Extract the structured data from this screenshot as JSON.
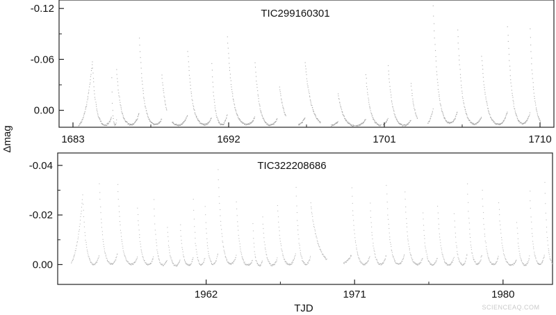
{
  "chart_data": [
    {
      "type": "scatter",
      "title": "TIC299160301",
      "xlim": [
        1683,
        1710
      ],
      "ylim": [
        0.02,
        -0.13
      ],
      "y_inverted": true,
      "x_ticks": [
        1683,
        1692,
        1701,
        1710
      ],
      "x_tick_labels": [
        "1683",
        "1692",
        "1701",
        "1710"
      ],
      "y_ticks": [
        -0.12,
        -0.06,
        0.0
      ],
      "y_tick_labels": [
        "-0.12",
        "-0.06",
        "0.00"
      ],
      "grid": false,
      "marker_color": "#9a9a9a",
      "series": [
        {
          "peaks": [
            [
              1684.1,
              -0.058
            ],
            [
              1685.2,
              -0.062
            ],
            [
              1685.5,
              -0.05
            ],
            [
              1686.8,
              -0.094
            ],
            [
              1688.1,
              -0.044
            ],
            [
              1689.6,
              -0.076
            ],
            [
              1691.0,
              -0.058
            ],
            [
              1691.9,
              -0.09
            ],
            [
              1693.5,
              -0.06
            ],
            [
              1694.8,
              -0.052
            ],
            [
              1696.4,
              -0.058
            ],
            [
              1698.3,
              -0.022
            ],
            [
              1699.9,
              -0.046
            ],
            [
              1701.2,
              -0.055
            ],
            [
              1702.5,
              -0.036
            ],
            [
              1703.8,
              -0.128
            ],
            [
              1705.2,
              -0.104
            ],
            [
              1706.6,
              -0.066
            ],
            [
              1708.1,
              -0.104
            ],
            [
              1709.4,
              -0.098
            ]
          ],
          "troughs_mag": 0.02,
          "segments": [
            [
              1683.3,
              1688.4
            ],
            [
              1688.7,
              1694.8
            ],
            [
              1694.9,
              1695.3
            ],
            [
              1696.0,
              1697.3
            ],
            [
              1697.9,
              1700.8
            ],
            [
              1700.9,
              1702.9
            ],
            [
              1703.5,
              1710.0
            ]
          ]
        }
      ]
    },
    {
      "type": "scatter",
      "title": "TIC322208686",
      "xlabel": "TJD",
      "xlim": [
        1953,
        1983
      ],
      "ylim": [
        0.008,
        -0.045
      ],
      "y_inverted": true,
      "x_ticks": [
        1962,
        1971,
        1980
      ],
      "x_tick_labels": [
        "1962",
        "1971",
        "1980"
      ],
      "y_ticks": [
        -0.04,
        -0.02,
        0.0
      ],
      "y_tick_labels": [
        "-0.04",
        "-0.02",
        "0.00"
      ],
      "grid": false,
      "marker_color": "#b0b0b0",
      "series": [
        {
          "peaks": [
            [
              1954.5,
              -0.028
            ],
            [
              1955.5,
              -0.034
            ],
            [
              1956.6,
              -0.036
            ],
            [
              1957.8,
              -0.026
            ],
            [
              1958.8,
              -0.028
            ],
            [
              1959.6,
              -0.018
            ],
            [
              1960.4,
              -0.018
            ],
            [
              1961.2,
              -0.028
            ],
            [
              1961.9,
              -0.026
            ],
            [
              1962.7,
              -0.04
            ],
            [
              1963.8,
              -0.029
            ],
            [
              1964.8,
              -0.018
            ],
            [
              1965.4,
              -0.02
            ],
            [
              1966.3,
              -0.025
            ],
            [
              1967.4,
              -0.036
            ],
            [
              1968.3,
              -0.026
            ],
            [
              1970.8,
              -0.032
            ],
            [
              1971.9,
              -0.028
            ],
            [
              1972.9,
              -0.033
            ],
            [
              1974.0,
              -0.033
            ],
            [
              1975.1,
              -0.023
            ],
            [
              1976.0,
              -0.026
            ],
            [
              1977.0,
              -0.024
            ],
            [
              1977.8,
              -0.036
            ],
            [
              1978.7,
              -0.033
            ],
            [
              1979.7,
              -0.028
            ],
            [
              1980.8,
              -0.019
            ],
            [
              1981.6,
              -0.031
            ],
            [
              1982.5,
              -0.035
            ],
            [
              1983.3,
              -0.038
            ]
          ],
          "troughs_mag": 0.001,
          "segments": [
            [
              1953.8,
              1969.3
            ],
            [
              1970.3,
              1983.6
            ]
          ]
        }
      ]
    }
  ],
  "y_axis_label": "Δmag",
  "watermark": "SCIENCEAQ.COM"
}
